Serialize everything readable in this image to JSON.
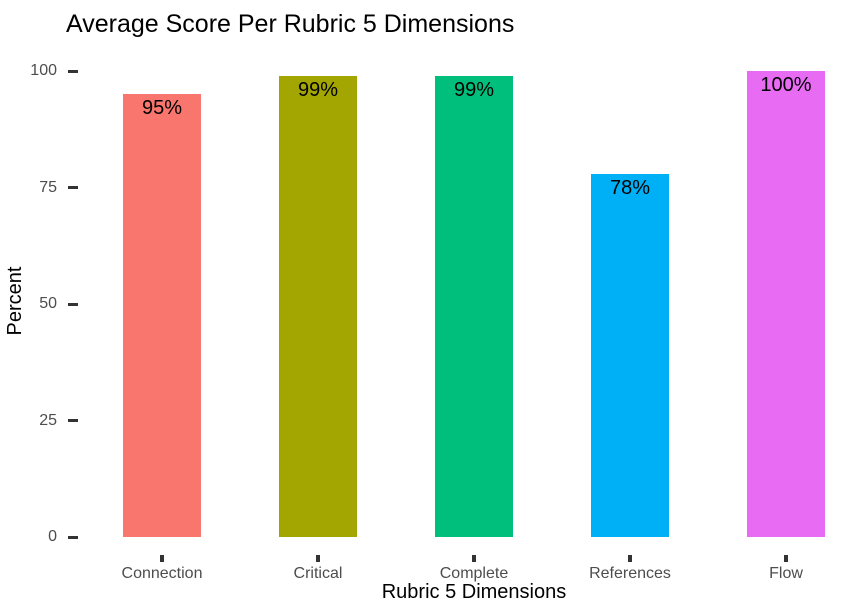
{
  "chart_data": {
    "type": "bar",
    "title": "Average Score Per Rubric 5 Dimensions",
    "xlabel": "Rubric 5 Dimensions",
    "ylabel": "Percent",
    "categories": [
      "Connection",
      "Critical",
      "Complete",
      "References",
      "Flow"
    ],
    "values": [
      95,
      99,
      99,
      78,
      100
    ],
    "bar_labels": [
      "95%",
      "99%",
      "99%",
      "78%",
      "100%"
    ],
    "bar_colors": [
      "#F8766D",
      "#A3A500",
      "#00BF7D",
      "#00B0F6",
      "#E76BF3"
    ],
    "y_ticks": [
      0,
      25,
      50,
      75,
      100
    ],
    "ylim": [
      0,
      100
    ],
    "grid": "off",
    "legend": "none",
    "background_color": "#FFFFFF",
    "tick_label_color": "#4D4D4D",
    "tick_mark_color": "#333333",
    "text_color": "#000000"
  }
}
